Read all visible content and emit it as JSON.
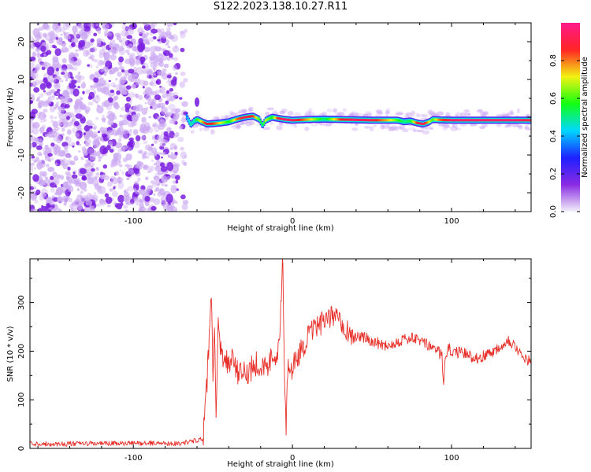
{
  "title": "S122.2023.138.10.27.R11",
  "colors": {
    "frame": "#000000",
    "snr_line": "#e8302a",
    "speckle_dark": "#7a1ee0",
    "speckle_light": "#cba8f2",
    "colorbar_stops": [
      "#f4f0fa",
      "#8a2be2",
      "#1d20ff",
      "#00d8ff",
      "#12ff12",
      "#f2f212",
      "#ff2424",
      "#ff1a8c"
    ]
  },
  "chart_data": [
    {
      "type": "heatmap",
      "xlabel": "Height of straight line (km)",
      "ylabel": "Frequency (Hz)",
      "xlim": [
        -165,
        150
      ],
      "ylim": [
        -25,
        25
      ],
      "xticks": [
        -100,
        0,
        100
      ],
      "xtick_labels": [
        "-100",
        "0",
        "100"
      ],
      "yticks": [
        -20,
        -10,
        0,
        10,
        20
      ],
      "ytick_labels": [
        "-20",
        "-10",
        "0",
        "10",
        "20"
      ],
      "colorbar": {
        "label": "Normalized spectral amplitude",
        "range": [
          0,
          1
        ],
        "ticks": [
          0.0,
          0.2,
          0.4,
          0.6,
          0.8
        ],
        "tick_labels": [
          "0.0",
          "0.2",
          "0.4",
          "0.6",
          "0.8"
        ]
      },
      "noise_region_x": [
        -165,
        -67
      ],
      "ridge": {
        "x": [
          -67,
          -64,
          -62,
          -60,
          -57,
          -54,
          -50,
          -45,
          -40,
          -35,
          -30,
          -25,
          -21,
          -19,
          -17,
          -13,
          -9,
          -5,
          0,
          10,
          20,
          30,
          40,
          50,
          60,
          66,
          70,
          74,
          78,
          82,
          86,
          88,
          92,
          100,
          110,
          120,
          130,
          140,
          150
        ],
        "y": [
          0.5,
          -2.0,
          -1.0,
          -0.6,
          -1.2,
          -1.8,
          -1.7,
          -1.5,
          -1.2,
          -0.5,
          0.0,
          0.3,
          -0.5,
          -2.2,
          -0.8,
          0.0,
          -0.3,
          -0.6,
          -0.8,
          -0.6,
          -0.5,
          -0.6,
          -0.7,
          -0.8,
          -0.8,
          -0.8,
          -1.2,
          -1.0,
          -1.5,
          -1.8,
          -1.2,
          -0.6,
          -0.7,
          -0.8,
          -0.8,
          -0.8,
          -0.8,
          -0.8,
          -0.8
        ],
        "amplitude": [
          0.35,
          0.5,
          0.45,
          0.6,
          0.75,
          0.9,
          0.85,
          0.7,
          0.55,
          0.8,
          0.92,
          0.85,
          0.6,
          0.5,
          0.7,
          0.55,
          0.9,
          0.95,
          0.95,
          0.75,
          0.5,
          0.85,
          0.95,
          0.9,
          0.75,
          0.6,
          0.5,
          0.55,
          0.85,
          0.95,
          0.7,
          0.6,
          0.8,
          0.95,
          0.95,
          0.95,
          0.95,
          0.95,
          0.9
        ]
      }
    },
    {
      "type": "line",
      "xlabel": "Height of straight line (km)",
      "ylabel": "SNR (10 * v/v)",
      "xlim": [
        -165,
        150
      ],
      "ylim": [
        0,
        390
      ],
      "xticks": [
        -100,
        0,
        100
      ],
      "xtick_labels": [
        "-100",
        "0",
        "100"
      ],
      "yticks": [
        0,
        100,
        200,
        300
      ],
      "ytick_labels": [
        "0",
        "100",
        "200",
        "300"
      ],
      "series": [
        {
          "x": [
            -165,
            -150,
            -130,
            -110,
            -90,
            -70,
            -56,
            -54,
            -52,
            -51,
            -50,
            -49,
            -48,
            -47,
            -46,
            -45,
            -43,
            -40,
            -37,
            -34,
            -30,
            -26,
            -22,
            -18,
            -14,
            -10,
            -8,
            -6,
            -5,
            -4,
            -3,
            -2,
            0,
            5,
            10,
            15,
            20,
            25,
            28,
            32,
            36,
            40,
            45,
            50,
            55,
            60,
            65,
            70,
            75,
            80,
            85,
            90,
            94,
            95,
            96,
            98,
            100,
            105,
            110,
            115,
            120,
            125,
            130,
            135,
            140,
            145,
            150
          ],
          "y": [
            10,
            9,
            10,
            10,
            11,
            10,
            20,
            120,
            240,
            320,
            150,
            240,
            45,
            240,
            260,
            200,
            190,
            175,
            190,
            145,
            155,
            165,
            180,
            160,
            180,
            200,
            230,
            390,
            120,
            50,
            160,
            150,
            170,
            200,
            230,
            250,
            260,
            270,
            285,
            255,
            235,
            230,
            228,
            222,
            215,
            212,
            218,
            225,
            226,
            222,
            212,
            205,
            190,
            130,
            180,
            205,
            200,
            197,
            193,
            186,
            190,
            198,
            208,
            225,
            212,
            183,
            180
          ]
        }
      ]
    }
  ]
}
